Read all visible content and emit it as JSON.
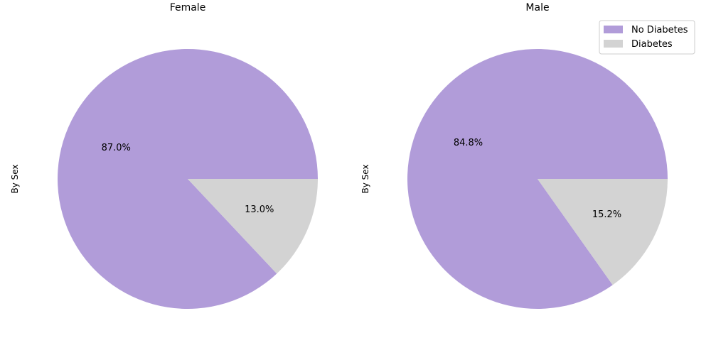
{
  "chart_data": [
    {
      "type": "pie",
      "title": "Female",
      "ylabel": "By Sex",
      "categories": [
        "No Diabetes",
        "Diabetes"
      ],
      "values": [
        87.0,
        13.0
      ],
      "labels": [
        "87.0%",
        "13.0%"
      ],
      "colors": [
        "#b19cd9",
        "#d3d3d3"
      ],
      "start_angle": 0,
      "direction": "counterclockwise"
    },
    {
      "type": "pie",
      "title": "Male",
      "ylabel": "By Sex",
      "categories": [
        "No Diabetes",
        "Diabetes"
      ],
      "values": [
        84.8,
        15.2
      ],
      "labels": [
        "84.8%",
        "15.2%"
      ],
      "colors": [
        "#b19cd9",
        "#d3d3d3"
      ],
      "start_angle": 0,
      "direction": "counterclockwise"
    }
  ],
  "legend": {
    "location": "top-right",
    "items": [
      {
        "label": "No Diabetes",
        "color": "#b19cd9"
      },
      {
        "label": "Diabetes",
        "color": "#d3d3d3"
      }
    ]
  }
}
